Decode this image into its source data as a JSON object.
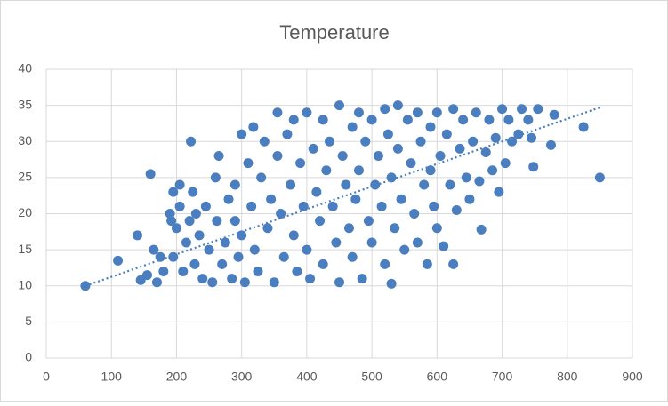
{
  "chart_data": {
    "type": "scatter",
    "title": "Temperature",
    "series": [
      {
        "color": "#4a7ebf",
        "x": [
          60,
          110,
          140,
          145,
          155,
          160,
          165,
          170,
          175,
          180,
          190,
          192,
          195,
          195,
          200,
          205,
          205,
          210,
          215,
          220,
          222,
          225,
          228,
          230,
          235,
          240,
          245,
          250,
          255,
          260,
          262,
          265,
          270,
          275,
          280,
          285,
          290,
          290,
          295,
          300,
          300,
          305,
          310,
          315,
          318,
          320,
          325,
          330,
          335,
          340,
          345,
          350,
          355,
          355,
          360,
          365,
          370,
          375,
          380,
          380,
          385,
          390,
          395,
          400,
          400,
          405,
          410,
          415,
          420,
          425,
          425,
          430,
          435,
          440,
          445,
          450,
          450,
          455,
          460,
          465,
          470,
          470,
          475,
          480,
          480,
          485,
          490,
          495,
          500,
          500,
          505,
          510,
          515,
          520,
          520,
          525,
          530,
          530,
          535,
          540,
          540,
          545,
          550,
          555,
          560,
          565,
          570,
          570,
          575,
          580,
          585,
          590,
          590,
          595,
          600,
          600,
          605,
          610,
          615,
          620,
          625,
          625,
          630,
          635,
          640,
          645,
          650,
          655,
          660,
          665,
          668,
          675,
          680,
          685,
          690,
          695,
          700,
          705,
          710,
          715,
          725,
          730,
          740,
          745,
          748,
          755,
          775,
          780,
          825,
          850
        ],
        "values": [
          10,
          13.5,
          17,
          10.8,
          11.5,
          25.5,
          15,
          10.5,
          14,
          12,
          20,
          19,
          23,
          14,
          18,
          24,
          21,
          12,
          16,
          19,
          30,
          23,
          13,
          20,
          17,
          11,
          21,
          15,
          10.5,
          25,
          19,
          28,
          13,
          16,
          22,
          11,
          24,
          19,
          14,
          31,
          17,
          10.5,
          27,
          21,
          32,
          15,
          12,
          25,
          30,
          18,
          22,
          10.5,
          34,
          28,
          20,
          14,
          31,
          24,
          33,
          17,
          12,
          27,
          21,
          34,
          15,
          11,
          29,
          23,
          19,
          33,
          13,
          26,
          30,
          21,
          16,
          35,
          10.5,
          28,
          24,
          18,
          32,
          14,
          22,
          34,
          26,
          11,
          30,
          19,
          33,
          16,
          24,
          28,
          21,
          34.5,
          13,
          31,
          10.3,
          25,
          18,
          35,
          29,
          22,
          15,
          33,
          27,
          20,
          34,
          16,
          30,
          24,
          13,
          32,
          26,
          21,
          34,
          18,
          28,
          15.5,
          31,
          24,
          13,
          34.5,
          20.5,
          29,
          33,
          25,
          22,
          30,
          34,
          24.5,
          17.8,
          28.5,
          33,
          26,
          30.5,
          23,
          34.5,
          27,
          33,
          30,
          31,
          34.5,
          33,
          30.5,
          26.5,
          34.5,
          29.5,
          33.7,
          32,
          25
        ]
      }
    ],
    "trendline": {
      "x": [
        60,
        850
      ],
      "values": [
        10,
        34.7
      ]
    },
    "xlim": [
      0,
      900
    ],
    "xticks": [
      0,
      100,
      200,
      300,
      400,
      500,
      600,
      700,
      800,
      900
    ],
    "ylim": [
      0,
      40
    ],
    "yticks": [
      0,
      5,
      10,
      15,
      20,
      25,
      30,
      35,
      40
    ],
    "grid": true
  }
}
